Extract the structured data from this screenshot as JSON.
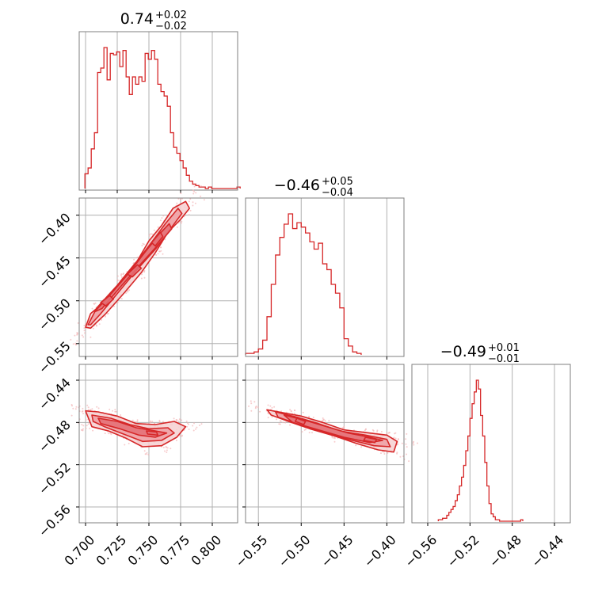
{
  "chart_data": {
    "type": "corner",
    "color": "#d62728",
    "fill_colors": [
      "#f6d0d1",
      "#ef9fa3",
      "#e46e74"
    ],
    "grid": true,
    "parameters": [
      {
        "title_value": "0.74",
        "title_plus": "+0.02",
        "title_minus": "−0.02",
        "range": [
          0.695,
          0.82
        ],
        "ticks": [
          0.7,
          0.725,
          0.75,
          0.775,
          0.8
        ],
        "tick_labels": [
          "0.700",
          "0.725",
          "0.750",
          "0.775",
          "0.800"
        ]
      },
      {
        "title_value": "−0.46",
        "title_plus": "+0.05",
        "title_minus": "−0.04",
        "range": [
          -0.565,
          -0.38
        ],
        "ticks": [
          -0.55,
          -0.5,
          -0.45,
          -0.4
        ],
        "tick_labels": [
          "−0.55",
          "−0.50",
          "−0.45",
          "−0.40"
        ]
      },
      {
        "title_value": "−0.49",
        "title_plus": "+0.01",
        "title_minus": "−0.01",
        "range": [
          -0.575,
          -0.425
        ],
        "ticks": [
          -0.56,
          -0.52,
          -0.48,
          -0.44
        ],
        "tick_labels": [
          "−0.56",
          "−0.52",
          "−0.48",
          "−0.44"
        ]
      }
    ],
    "histograms": [
      {
        "parameter": 0,
        "bin_start": 0.6995,
        "bin_width": 0.0025,
        "counts": [
          10,
          14,
          27,
          38,
          79,
          82,
          96,
          74,
          92,
          91,
          93,
          83,
          94,
          76,
          64,
          76,
          71,
          76,
          73,
          92,
          88,
          94,
          88,
          71,
          66,
          63,
          56,
          38,
          28,
          24,
          19,
          14,
          9,
          5,
          3,
          2,
          1,
          1,
          0,
          1,
          0,
          0,
          0,
          0,
          0,
          0,
          0,
          0,
          1
        ]
      },
      {
        "parameter": 1,
        "bin_start": -0.565,
        "bin_width": 0.005,
        "counts": [
          1,
          1,
          2,
          4,
          10,
          26,
          48,
          68,
          80,
          89,
          96,
          86,
          90,
          87,
          83,
          77,
          72,
          76,
          62,
          58,
          48,
          42,
          32,
          11,
          6,
          2,
          1
        ]
      },
      {
        "parameter": 2,
        "bin_start": -0.55,
        "bin_width": 0.002,
        "counts": [
          1,
          1,
          2,
          2,
          4,
          6,
          8,
          10,
          14,
          18,
          24,
          30,
          38,
          48,
          58,
          70,
          80,
          88,
          96,
          90,
          72,
          58,
          40,
          24,
          12,
          5,
          3,
          1,
          1,
          0,
          0,
          0,
          0,
          0,
          0,
          0,
          0,
          0,
          0,
          1
        ]
      }
    ],
    "joint_distributions": [
      {
        "x_param": 0,
        "y_param": 1,
        "contours": [
          {
            "level": "outer",
            "points": [
              [
                0.7,
                -0.531
              ],
              [
                0.704,
                -0.515
              ],
              [
                0.716,
                -0.5
              ],
              [
                0.731,
                -0.471
              ],
              [
                0.741,
                -0.453
              ],
              [
                0.75,
                -0.43
              ],
              [
                0.76,
                -0.412
              ],
              [
                0.769,
                -0.392
              ],
              [
                0.779,
                -0.384
              ],
              [
                0.782,
                -0.392
              ],
              [
                0.775,
                -0.405
              ],
              [
                0.765,
                -0.42
              ],
              [
                0.755,
                -0.444
              ],
              [
                0.744,
                -0.467
              ],
              [
                0.731,
                -0.49
              ],
              [
                0.716,
                -0.515
              ],
              [
                0.704,
                -0.532
              ]
            ]
          },
          {
            "level": "mid",
            "points": [
              [
                0.702,
                -0.528
              ],
              [
                0.709,
                -0.508
              ],
              [
                0.725,
                -0.482
              ],
              [
                0.74,
                -0.455
              ],
              [
                0.752,
                -0.432
              ],
              [
                0.763,
                -0.41
              ],
              [
                0.773,
                -0.392
              ],
              [
                0.776,
                -0.398
              ],
              [
                0.768,
                -0.414
              ],
              [
                0.755,
                -0.44
              ],
              [
                0.741,
                -0.463
              ],
              [
                0.726,
                -0.49
              ],
              [
                0.712,
                -0.515
              ],
              [
                0.704,
                -0.528
              ]
            ]
          },
          {
            "level": "inner",
            "points": [
              [
                0.707,
                -0.513
              ],
              [
                0.72,
                -0.492
              ],
              [
                0.734,
                -0.468
              ],
              [
                0.747,
                -0.443
              ],
              [
                0.759,
                -0.421
              ],
              [
                0.766,
                -0.41
              ],
              [
                0.768,
                -0.416
              ],
              [
                0.757,
                -0.435
              ],
              [
                0.743,
                -0.458
              ],
              [
                0.728,
                -0.483
              ],
              [
                0.713,
                -0.509
              ]
            ]
          },
          {
            "level": "core",
            "points": [
              [
                0.712,
                -0.502
              ],
              [
                0.719,
                -0.494
              ],
              [
                0.722,
                -0.498
              ],
              [
                0.716,
                -0.506
              ]
            ]
          },
          {
            "level": "core",
            "points": [
              [
                0.733,
                -0.469
              ],
              [
                0.741,
                -0.458
              ],
              [
                0.744,
                -0.462
              ],
              [
                0.737,
                -0.472
              ]
            ]
          },
          {
            "level": "core",
            "points": [
              [
                0.752,
                -0.432
              ],
              [
                0.759,
                -0.42
              ],
              [
                0.761,
                -0.425
              ],
              [
                0.755,
                -0.436
              ]
            ]
          }
        ]
      },
      {
        "x_param": 0,
        "y_param": 2,
        "contours": [
          {
            "level": "outer",
            "points": [
              [
                0.7,
                -0.469
              ],
              [
                0.71,
                -0.47
              ],
              [
                0.725,
                -0.474
              ],
              [
                0.74,
                -0.481
              ],
              [
                0.755,
                -0.482
              ],
              [
                0.77,
                -0.479
              ],
              [
                0.779,
                -0.484
              ],
              [
                0.772,
                -0.494
              ],
              [
                0.76,
                -0.502
              ],
              [
                0.745,
                -0.503
              ],
              [
                0.732,
                -0.495
              ],
              [
                0.718,
                -0.488
              ],
              [
                0.705,
                -0.484
              ],
              [
                0.702,
                -0.475
              ]
            ]
          },
          {
            "level": "mid",
            "points": [
              [
                0.705,
                -0.473
              ],
              [
                0.72,
                -0.476
              ],
              [
                0.735,
                -0.482
              ],
              [
                0.75,
                -0.486
              ],
              [
                0.765,
                -0.485
              ],
              [
                0.77,
                -0.49
              ],
              [
                0.76,
                -0.497
              ],
              [
                0.745,
                -0.498
              ],
              [
                0.73,
                -0.491
              ],
              [
                0.715,
                -0.484
              ],
              [
                0.706,
                -0.479
              ]
            ]
          },
          {
            "level": "inner",
            "points": [
              [
                0.71,
                -0.476
              ],
              [
                0.725,
                -0.479
              ],
              [
                0.74,
                -0.485
              ],
              [
                0.755,
                -0.488
              ],
              [
                0.764,
                -0.49
              ],
              [
                0.755,
                -0.494
              ],
              [
                0.742,
                -0.492
              ],
              [
                0.727,
                -0.486
              ],
              [
                0.712,
                -0.481
              ]
            ]
          },
          {
            "level": "core",
            "points": [
              [
                0.748,
                -0.488
              ],
              [
                0.756,
                -0.489
              ],
              [
                0.757,
                -0.492
              ],
              [
                0.749,
                -0.491
              ]
            ]
          }
        ]
      },
      {
        "x_param": 1,
        "y_param": 2,
        "contours": [
          {
            "level": "outer",
            "points": [
              [
                -0.54,
                -0.468
              ],
              [
                -0.52,
                -0.471
              ],
              [
                -0.5,
                -0.474
              ],
              [
                -0.475,
                -0.48
              ],
              [
                -0.45,
                -0.487
              ],
              [
                -0.42,
                -0.49
              ],
              [
                -0.4,
                -0.492
              ],
              [
                -0.388,
                -0.498
              ],
              [
                -0.392,
                -0.508
              ],
              [
                -0.41,
                -0.506
              ],
              [
                -0.435,
                -0.5
              ],
              [
                -0.46,
                -0.493
              ],
              [
                -0.49,
                -0.486
              ],
              [
                -0.515,
                -0.479
              ],
              [
                -0.535,
                -0.473
              ]
            ]
          },
          {
            "level": "mid",
            "points": [
              [
                -0.53,
                -0.47
              ],
              [
                -0.505,
                -0.475
              ],
              [
                -0.48,
                -0.481
              ],
              [
                -0.455,
                -0.488
              ],
              [
                -0.425,
                -0.492
              ],
              [
                -0.4,
                -0.496
              ],
              [
                -0.396,
                -0.503
              ],
              [
                -0.415,
                -0.502
              ],
              [
                -0.445,
                -0.496
              ],
              [
                -0.475,
                -0.489
              ],
              [
                -0.505,
                -0.481
              ],
              [
                -0.527,
                -0.475
              ]
            ]
          },
          {
            "level": "inner",
            "points": [
              [
                -0.52,
                -0.473
              ],
              [
                -0.495,
                -0.478
              ],
              [
                -0.47,
                -0.484
              ],
              [
                -0.445,
                -0.49
              ],
              [
                -0.42,
                -0.494
              ],
              [
                -0.405,
                -0.497
              ],
              [
                -0.42,
                -0.499
              ],
              [
                -0.45,
                -0.494
              ],
              [
                -0.48,
                -0.487
              ],
              [
                -0.51,
                -0.48
              ]
            ]
          },
          {
            "level": "core",
            "points": [
              [
                -0.505,
                -0.476
              ],
              [
                -0.495,
                -0.479
              ],
              [
                -0.497,
                -0.482
              ],
              [
                -0.507,
                -0.479
              ]
            ]
          },
          {
            "level": "core",
            "points": [
              [
                -0.425,
                -0.494
              ],
              [
                -0.412,
                -0.496
              ],
              [
                -0.414,
                -0.499
              ],
              [
                -0.427,
                -0.497
              ]
            ]
          }
        ]
      }
    ]
  }
}
